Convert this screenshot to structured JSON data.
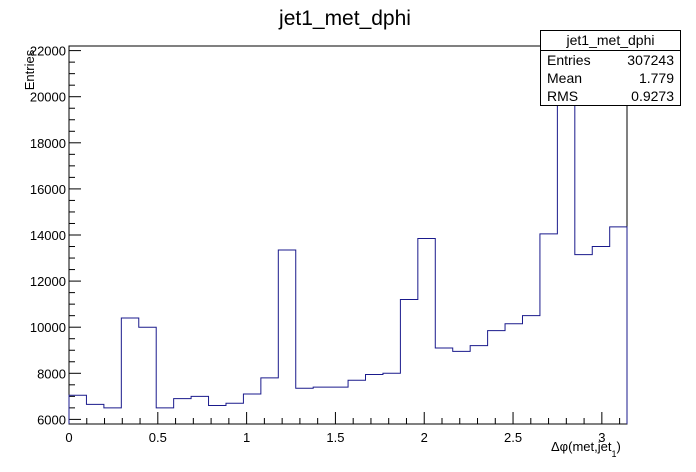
{
  "chart_data": {
    "type": "bar",
    "style": "step-histogram",
    "title": "jet1_met_dphi",
    "xlabel": "Δφ(met,jet",
    "xlabel_sub": "1",
    "xlabel_close": ")",
    "ylabel": "Entries",
    "xlim": [
      0,
      3.1416
    ],
    "ylim": [
      5800,
      22200
    ],
    "x_ticks": [
      0,
      0.5,
      1,
      1.5,
      2,
      2.5,
      3
    ],
    "x_tick_labels": [
      "0",
      "0.5",
      "1",
      "1.5",
      "2",
      "2.5",
      "3"
    ],
    "y_ticks": [
      6000,
      8000,
      10000,
      12000,
      14000,
      16000,
      18000,
      20000,
      22000
    ],
    "y_tick_labels": [
      "6000",
      "8000",
      "10000",
      "12000",
      "14000",
      "16000",
      "18000",
      "20000",
      "22000"
    ],
    "bin_width": 0.0982,
    "values": [
      7050,
      6650,
      6500,
      10400,
      10000,
      6500,
      6900,
      7000,
      6600,
      6700,
      7100,
      7800,
      13350,
      7350,
      7400,
      7400,
      7700,
      7950,
      8000,
      11200,
      13850,
      9100,
      8950,
      9200,
      9850,
      10150,
      10500,
      14050,
      21500,
      13150,
      13500,
      14350
    ],
    "line_color": "#1a1a8c",
    "grid": false,
    "stats": {
      "title": "jet1_met_dphi",
      "rows": [
        {
          "label": "Entries",
          "value": "307243"
        },
        {
          "label": "Mean",
          "value": "1.779"
        },
        {
          "label": "RMS",
          "value": "0.9273"
        }
      ]
    }
  }
}
